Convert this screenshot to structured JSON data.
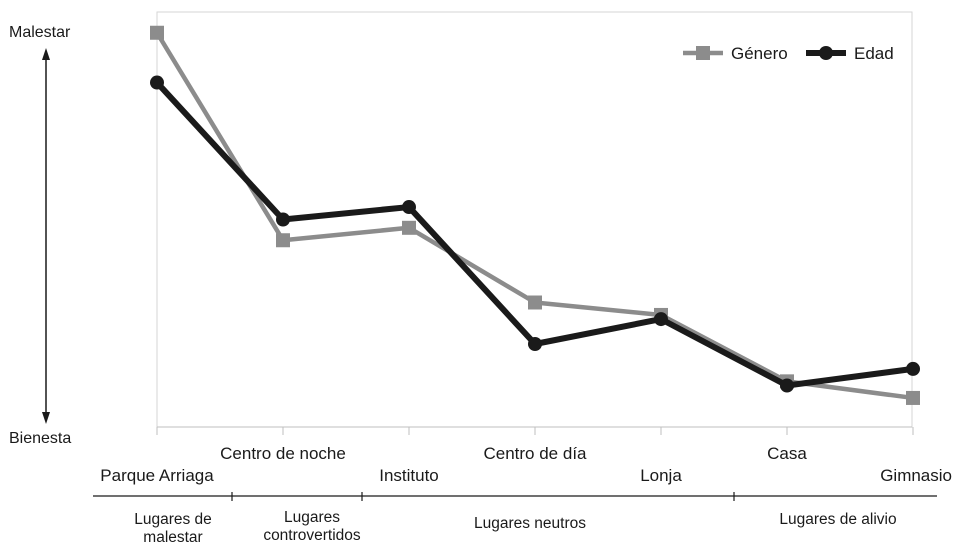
{
  "chart_data": {
    "type": "line",
    "categories": [
      "Parque Arriaga",
      "Centro de noche",
      "Instituto",
      "Centro de día",
      "Lonja",
      "Casa",
      "Gimnasio"
    ],
    "y_scale": {
      "top_label": "Malestar",
      "bottom_label": "Bienesta",
      "range": [
        0,
        100
      ],
      "axis_labels_shown": false
    },
    "series": [
      {
        "name": "Género",
        "color": "#8c8c8c",
        "marker": "square",
        "values": [
          95,
          45,
          48,
          30,
          27,
          11,
          7
        ]
      },
      {
        "name": "Edad",
        "color": "#1a1a1a",
        "marker": "circle",
        "values": [
          83,
          50,
          53,
          20,
          26,
          10,
          14
        ]
      }
    ],
    "category_groups": [
      {
        "label_lines": [
          "Lugares de",
          "malestar"
        ]
      },
      {
        "label_lines": [
          "Lugares",
          "controvertidos"
        ]
      },
      {
        "label_lines": [
          "Lugares neutros"
        ]
      },
      {
        "label_lines": [
          "Lugares de alivio"
        ]
      }
    ],
    "legend": {
      "position": "top-right"
    },
    "grid": false
  }
}
